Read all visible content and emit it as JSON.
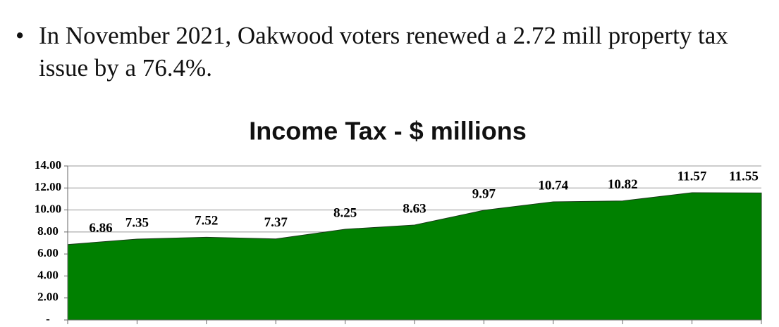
{
  "bullets": [
    "In November 2021, Oakwood voters renewed a 2.72 mill property tax issue by a 76.4%."
  ],
  "chart_data": {
    "type": "area",
    "title": "Income Tax - $ millions",
    "categories": [
      null,
      null,
      null,
      null,
      null,
      null,
      null,
      null,
      null,
      null,
      null
    ],
    "values": [
      6.86,
      7.35,
      7.52,
      7.37,
      8.25,
      8.63,
      9.97,
      10.74,
      10.82,
      11.57,
      11.55
    ],
    "color": "#008000",
    "ylim": [
      0,
      14
    ],
    "yticks": [
      {
        "value": 0,
        "label": "-"
      },
      {
        "value": 2,
        "label": "2.00"
      },
      {
        "value": 4,
        "label": "4.00"
      },
      {
        "value": 6,
        "label": "6.00"
      },
      {
        "value": 8,
        "label": "8.00"
      },
      {
        "value": 10,
        "label": "10.00"
      },
      {
        "value": 12,
        "label": "12.00"
      },
      {
        "value": 14,
        "label": "14.00"
      }
    ],
    "grid": true
  }
}
